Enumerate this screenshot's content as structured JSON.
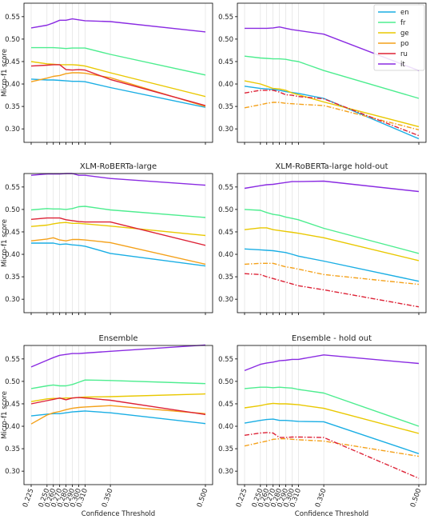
{
  "figure": {
    "xlabel": "Confidence Threshold",
    "ylabel": "Micro-f1 score"
  },
  "legend": {
    "placement": "top-right",
    "entries": [
      "en",
      "fr",
      "ge",
      "po",
      "ru",
      "it"
    ]
  },
  "colors": {
    "en": "#1aaee4",
    "fr": "#4ded8f",
    "ge": "#e9c800",
    "po": "#f4a11a",
    "ru": "#dd2236",
    "it": "#8a2be2",
    "grid": "#dddddd",
    "frame": "#000000"
  },
  "chart_data": [
    {
      "type": "line",
      "title": "",
      "xlabel": "",
      "ylabel": "Micro-f1 score",
      "x": [
        0.225,
        0.25,
        0.26,
        0.27,
        0.28,
        0.29,
        0.3,
        0.31,
        0.35,
        0.5
      ],
      "ylim": [
        0.27,
        0.58
      ],
      "yticks": [
        "0.30",
        "0.35",
        "0.40",
        "0.45",
        "0.50",
        "0.55"
      ],
      "series": [
        {
          "name": "en",
          "values": [
            0.411,
            0.409,
            0.409,
            0.408,
            0.407,
            0.406,
            0.406,
            0.405,
            0.392,
            0.348
          ]
        },
        {
          "name": "fr",
          "values": [
            0.481,
            0.481,
            0.481,
            0.48,
            0.479,
            0.48,
            0.48,
            0.48,
            0.466,
            0.42
          ]
        },
        {
          "name": "ge",
          "values": [
            0.45,
            0.445,
            0.444,
            0.443,
            0.443,
            0.443,
            0.442,
            0.44,
            0.425,
            0.372
          ]
        },
        {
          "name": "po",
          "values": [
            0.405,
            0.413,
            0.417,
            0.419,
            0.423,
            0.425,
            0.425,
            0.424,
            0.414,
            0.35
          ]
        },
        {
          "name": "ru",
          "values": [
            0.44,
            0.442,
            0.443,
            0.443,
            0.432,
            0.431,
            0.432,
            0.431,
            0.41,
            0.352
          ]
        },
        {
          "name": "it",
          "values": [
            0.525,
            0.531,
            0.536,
            0.542,
            0.542,
            0.545,
            0.543,
            0.541,
            0.539,
            0.516
          ]
        }
      ]
    },
    {
      "type": "line",
      "title": "",
      "xlabel": "",
      "ylabel": "",
      "x": [
        0.225,
        0.25,
        0.26,
        0.27,
        0.28,
        0.29,
        0.3,
        0.31,
        0.35,
        0.5
      ],
      "ylim": [
        0.27,
        0.58
      ],
      "yticks": [
        "0.30",
        "0.35",
        "0.40",
        "0.45",
        "0.50",
        "0.55"
      ],
      "series": [
        {
          "name": "en",
          "values": [
            0.395,
            0.39,
            0.389,
            0.388,
            0.386,
            0.383,
            0.381,
            0.379,
            0.368,
            0.278
          ]
        },
        {
          "name": "fr",
          "values": [
            0.462,
            0.458,
            0.457,
            0.456,
            0.456,
            0.455,
            0.452,
            0.45,
            0.43,
            0.368
          ]
        },
        {
          "name": "ge",
          "values": [
            0.407,
            0.4,
            0.395,
            0.39,
            0.389,
            0.386,
            0.38,
            0.376,
            0.36,
            0.305
          ]
        },
        {
          "name": "po",
          "values": [
            0.347,
            0.354,
            0.357,
            0.359,
            0.359,
            0.357,
            0.356,
            0.355,
            0.352,
            0.298
          ],
          "dash": true
        },
        {
          "name": "ru",
          "values": [
            0.38,
            0.386,
            0.386,
            0.386,
            0.382,
            0.376,
            0.375,
            0.372,
            0.367,
            0.285
          ],
          "dash": true
        },
        {
          "name": "it",
          "values": [
            0.524,
            0.524,
            0.524,
            0.525,
            0.527,
            0.524,
            0.521,
            0.519,
            0.511,
            0.43
          ]
        }
      ]
    },
    {
      "type": "line",
      "title": "XLM-RoBERTa-large",
      "xlabel": "",
      "ylabel": "Micro-f1 score",
      "x": [
        0.225,
        0.25,
        0.26,
        0.27,
        0.28,
        0.29,
        0.3,
        0.31,
        0.35,
        0.5
      ],
      "ylim": [
        0.27,
        0.58
      ],
      "yticks": [
        "0.30",
        "0.35",
        "0.40",
        "0.45",
        "0.50",
        "0.55"
      ],
      "series": [
        {
          "name": "en",
          "values": [
            0.425,
            0.425,
            0.425,
            0.422,
            0.423,
            0.421,
            0.42,
            0.418,
            0.402,
            0.374
          ]
        },
        {
          "name": "fr",
          "values": [
            0.499,
            0.502,
            0.501,
            0.501,
            0.5,
            0.502,
            0.506,
            0.507,
            0.499,
            0.482
          ]
        },
        {
          "name": "ge",
          "values": [
            0.462,
            0.465,
            0.468,
            0.47,
            0.471,
            0.469,
            0.469,
            0.468,
            0.463,
            0.442
          ]
        },
        {
          "name": "po",
          "values": [
            0.43,
            0.434,
            0.437,
            0.432,
            0.43,
            0.433,
            0.433,
            0.432,
            0.426,
            0.378
          ]
        },
        {
          "name": "ru",
          "values": [
            0.478,
            0.481,
            0.481,
            0.481,
            0.477,
            0.475,
            0.473,
            0.472,
            0.472,
            0.42
          ]
        },
        {
          "name": "it",
          "values": [
            0.576,
            0.579,
            0.579,
            0.579,
            0.58,
            0.58,
            0.576,
            0.576,
            0.569,
            0.554
          ]
        }
      ]
    },
    {
      "type": "line",
      "title": "XLM-RoBERTa-large hold-out",
      "xlabel": "",
      "ylabel": "",
      "x": [
        0.225,
        0.25,
        0.26,
        0.27,
        0.28,
        0.29,
        0.3,
        0.31,
        0.35,
        0.5
      ],
      "ylim": [
        0.27,
        0.58
      ],
      "yticks": [
        "0.30",
        "0.35",
        "0.40",
        "0.45",
        "0.50",
        "0.55"
      ],
      "series": [
        {
          "name": "en",
          "values": [
            0.412,
            0.41,
            0.409,
            0.408,
            0.406,
            0.404,
            0.4,
            0.396,
            0.385,
            0.34
          ]
        },
        {
          "name": "fr",
          "values": [
            0.5,
            0.498,
            0.493,
            0.489,
            0.487,
            0.483,
            0.48,
            0.477,
            0.458,
            0.402
          ]
        },
        {
          "name": "ge",
          "values": [
            0.455,
            0.459,
            0.459,
            0.455,
            0.453,
            0.451,
            0.449,
            0.447,
            0.437,
            0.386
          ]
        },
        {
          "name": "po",
          "values": [
            0.378,
            0.38,
            0.38,
            0.38,
            0.376,
            0.372,
            0.37,
            0.367,
            0.355,
            0.333
          ],
          "dash": true
        },
        {
          "name": "ru",
          "values": [
            0.357,
            0.355,
            0.35,
            0.346,
            0.342,
            0.338,
            0.334,
            0.33,
            0.321,
            0.283
          ],
          "dash": true
        },
        {
          "name": "it",
          "values": [
            0.547,
            0.553,
            0.555,
            0.556,
            0.558,
            0.56,
            0.562,
            0.562,
            0.563,
            0.54
          ]
        }
      ]
    },
    {
      "type": "line",
      "title": "Ensemble",
      "xlabel": "Confidence Threshold",
      "ylabel": "Micro-f1 score",
      "x": [
        0.225,
        0.25,
        0.26,
        0.27,
        0.28,
        0.29,
        0.3,
        0.31,
        0.35,
        0.5
      ],
      "xticks": [
        "0.225",
        "0.250",
        "0.260",
        "0.270",
        "0.280",
        "0.290",
        "0.300",
        "0.310",
        "0.350",
        "0.500"
      ],
      "ylim": [
        0.27,
        0.58
      ],
      "yticks": [
        "0.30",
        "0.35",
        "0.40",
        "0.45",
        "0.50",
        "0.55"
      ],
      "series": [
        {
          "name": "en",
          "values": [
            0.423,
            0.427,
            0.428,
            0.428,
            0.43,
            0.432,
            0.433,
            0.434,
            0.43,
            0.406
          ]
        },
        {
          "name": "fr",
          "values": [
            0.484,
            0.49,
            0.492,
            0.49,
            0.49,
            0.493,
            0.498,
            0.503,
            0.502,
            0.495
          ]
        },
        {
          "name": "ge",
          "values": [
            0.455,
            0.461,
            0.462,
            0.462,
            0.463,
            0.463,
            0.464,
            0.465,
            0.466,
            0.472
          ]
        },
        {
          "name": "po",
          "values": [
            0.405,
            0.425,
            0.43,
            0.433,
            0.437,
            0.44,
            0.442,
            0.443,
            0.446,
            0.428
          ]
        },
        {
          "name": "ru",
          "values": [
            0.45,
            0.457,
            0.46,
            0.463,
            0.459,
            0.463,
            0.464,
            0.463,
            0.458,
            0.426
          ]
        },
        {
          "name": "it",
          "values": [
            0.532,
            0.547,
            0.553,
            0.558,
            0.56,
            0.562,
            0.562,
            0.563,
            0.567,
            0.581
          ]
        }
      ]
    },
    {
      "type": "line",
      "title": "Ensemble - hold out",
      "xlabel": "Confidence Threshold",
      "ylabel": "",
      "x": [
        0.225,
        0.25,
        0.26,
        0.27,
        0.28,
        0.29,
        0.3,
        0.31,
        0.35,
        0.5
      ],
      "xticks": [
        "0.225",
        "0.250",
        "0.260",
        "0.270",
        "0.280",
        "0.290",
        "0.300",
        "0.310",
        "0.350",
        "0.500"
      ],
      "ylim": [
        0.27,
        0.58
      ],
      "yticks": [
        "0.30",
        "0.35",
        "0.40",
        "0.45",
        "0.50",
        "0.55"
      ],
      "series": [
        {
          "name": "en",
          "values": [
            0.407,
            0.413,
            0.415,
            0.416,
            0.413,
            0.413,
            0.412,
            0.411,
            0.41,
            0.339
          ]
        },
        {
          "name": "fr",
          "values": [
            0.484,
            0.487,
            0.487,
            0.486,
            0.487,
            0.486,
            0.485,
            0.482,
            0.474,
            0.4
          ]
        },
        {
          "name": "ge",
          "values": [
            0.441,
            0.446,
            0.449,
            0.451,
            0.45,
            0.45,
            0.449,
            0.448,
            0.44,
            0.384
          ]
        },
        {
          "name": "po",
          "values": [
            0.356,
            0.364,
            0.367,
            0.371,
            0.372,
            0.372,
            0.371,
            0.37,
            0.367,
            0.333
          ],
          "dash": true
        },
        {
          "name": "ru",
          "values": [
            0.38,
            0.385,
            0.386,
            0.385,
            0.375,
            0.375,
            0.376,
            0.376,
            0.375,
            0.284
          ],
          "dash": true
        },
        {
          "name": "it",
          "values": [
            0.524,
            0.538,
            0.541,
            0.543,
            0.546,
            0.547,
            0.549,
            0.549,
            0.559,
            0.54
          ]
        }
      ]
    }
  ]
}
